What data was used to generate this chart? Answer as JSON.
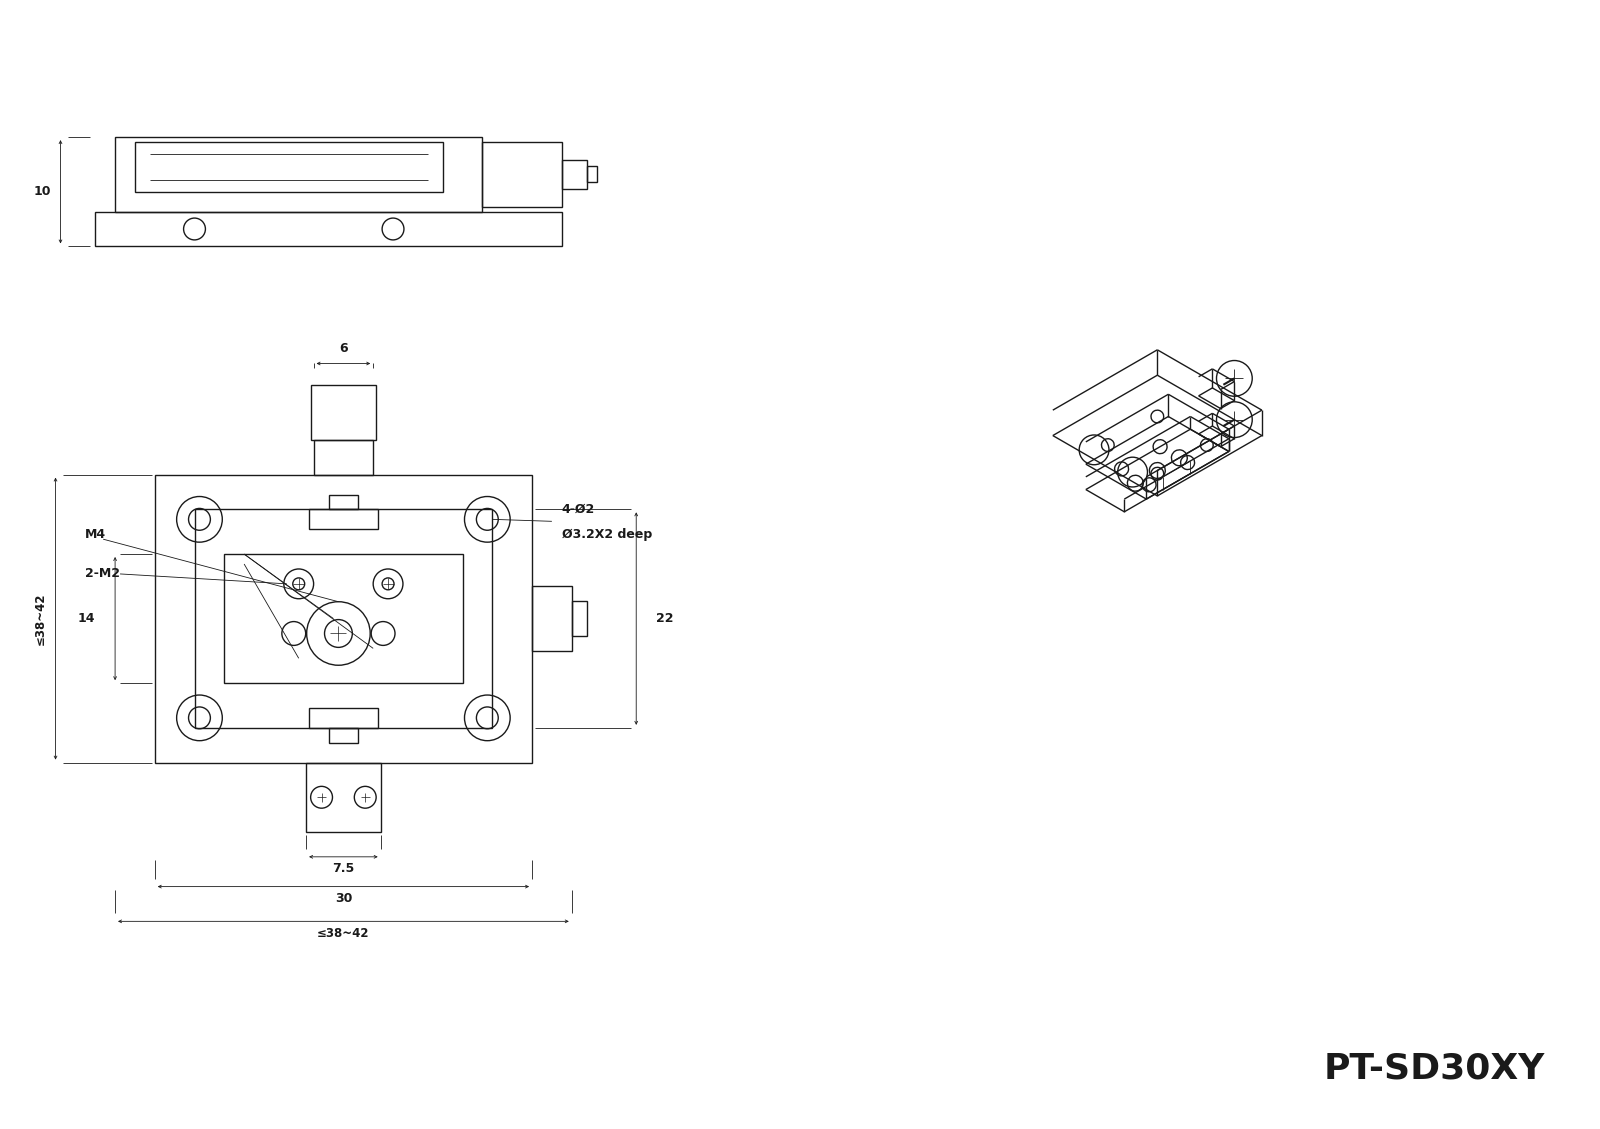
{
  "bg_color": "#ffffff",
  "line_color": "#1a1a1a",
  "title": "PT-SD30XY",
  "title_fontsize": 26,
  "title_fontweight": "bold",
  "ann_10": "10",
  "ann_6": "6",
  "ann_22": "22",
  "ann_14": "14",
  "ann_38_42_v": "≤38~42",
  "ann_7_5": "7.5",
  "ann_30": "30",
  "ann_38_42_h": "≤38~42",
  "ann_M4": "M4",
  "ann_2M2": "2-M2",
  "ann_4dia2": "4-Ø2",
  "ann_dia32": "Ø3.2X2 deep"
}
